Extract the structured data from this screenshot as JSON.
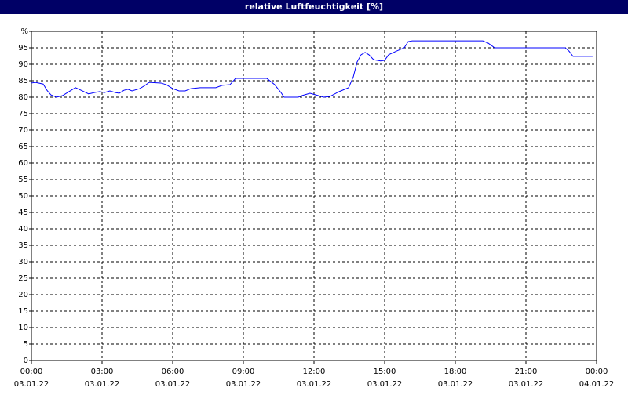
{
  "chart_data": {
    "type": "line",
    "title": "relative Luftfeuchtigkeit [%]",
    "xlim": [
      0,
      24
    ],
    "xticks": [
      {
        "value": 0,
        "label": "00:00"
      },
      {
        "value": 3,
        "label": "03:00"
      },
      {
        "value": 6,
        "label": "06:00"
      },
      {
        "value": 9,
        "label": "09:00"
      },
      {
        "value": 12,
        "label": "12:00"
      },
      {
        "value": 15,
        "label": "15:00"
      },
      {
        "value": 18,
        "label": "18:00"
      },
      {
        "value": 21,
        "label": "21:00"
      },
      {
        "value": 24,
        "label": "00:00"
      }
    ],
    "xtick_dates": [
      "03.01.22",
      "03.01.22",
      "03.01.22",
      "03.01.22",
      "03.01.22",
      "03.01.22",
      "03.01.22",
      "03.01.22",
      "04.01.22"
    ],
    "ylim": [
      0,
      100
    ],
    "yticks": [
      0,
      5,
      10,
      15,
      20,
      25,
      30,
      35,
      40,
      45,
      50,
      55,
      60,
      65,
      70,
      75,
      80,
      85,
      90,
      95,
      {
        "value": 100,
        "label": "%"
      }
    ],
    "grid": true,
    "series": [
      {
        "color": "#0000ff",
        "x": [
          0,
          0.17,
          0.5,
          0.67,
          0.83,
          1.07,
          1.33,
          1.6,
          1.87,
          2.17,
          2.43,
          2.67,
          2.9,
          3.1,
          3.33,
          3.57,
          3.73,
          3.93,
          4.1,
          4.27,
          4.6,
          4.83,
          5,
          5.5,
          5.73,
          6,
          6.27,
          6.53,
          6.77,
          7.17,
          7.83,
          8.1,
          8.43,
          8.67,
          10,
          10.33,
          10.6,
          10.73,
          11.33,
          11.5,
          11.83,
          12.17,
          12.4,
          12.67,
          13.07,
          13.47,
          13.67,
          13.83,
          14,
          14.17,
          14.33,
          14.53,
          14.83,
          15,
          15.17,
          15.5,
          15.83,
          16,
          16.17,
          19.17,
          19.4,
          19.67,
          22.67,
          22.83,
          23,
          23.83
        ],
        "values": [
          84.3,
          84.5,
          84,
          82,
          80.7,
          80,
          80.5,
          81.7,
          82.9,
          81.9,
          81,
          81.4,
          81.7,
          81.4,
          81.9,
          81.4,
          81.2,
          82.1,
          82.4,
          81.9,
          82.6,
          83.6,
          84.5,
          84.3,
          83.8,
          82.6,
          81.9,
          81.9,
          82.6,
          82.9,
          82.9,
          83.6,
          83.8,
          85.7,
          85.7,
          83.8,
          81.4,
          80,
          80,
          80.5,
          81.2,
          80.5,
          80,
          80.2,
          81.7,
          82.9,
          86.2,
          90.7,
          92.9,
          93.6,
          92.9,
          91.4,
          91,
          91.2,
          92.9,
          94,
          95,
          96.9,
          97.1,
          97.1,
          96.4,
          95,
          95,
          94,
          92.4,
          92.4
        ]
      }
    ]
  }
}
